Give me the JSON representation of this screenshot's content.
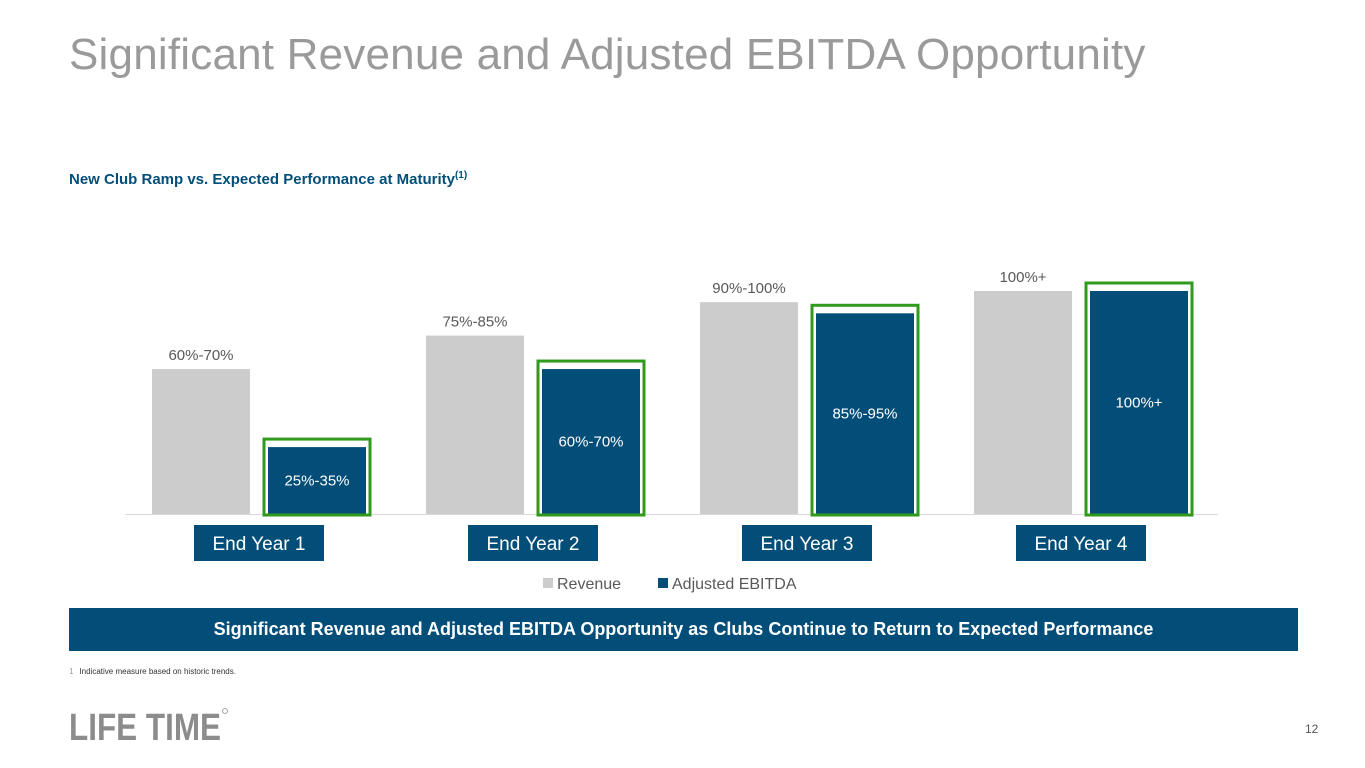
{
  "slide": {
    "title": "Significant Revenue and Adjusted EBITDA Opportunity",
    "subtitle": "New Club Ramp vs. Expected Performance at Maturity",
    "subtitle_footnote_ref": "(1)",
    "banner": "Significant Revenue and Adjusted EBITDA Opportunity as Clubs Continue to Return to Expected Performance",
    "footnote_number": "1",
    "footnote_text": "Indicative measure based on historic trends.",
    "logo_text": "LIFE TIME",
    "page_number": "12"
  },
  "colors": {
    "revenue": "#cccccc",
    "adjusted_ebitda": "#034e79",
    "highlight_border": "#2f9a1c",
    "banner": "#034e79",
    "title": "#9a9a9a",
    "subtitle": "#034e79"
  },
  "chart_data": {
    "type": "bar",
    "categories": [
      "End Year 1",
      "End Year 2",
      "End Year 3",
      "End Year 4"
    ],
    "series": [
      {
        "name": "Revenue",
        "values": [
          65,
          80,
          95,
          100
        ],
        "labels": [
          "60%-70%",
          "75%-85%",
          "90%-100%",
          "100%+"
        ]
      },
      {
        "name": "Adjusted EBITDA",
        "values": [
          30,
          65,
          90,
          100
        ],
        "labels": [
          "25%-35%",
          "60%-70%",
          "85%-95%",
          "100%+"
        ]
      }
    ],
    "ylim": [
      0,
      100
    ],
    "legend": "bottom",
    "highlighted_series": "Adjusted EBITDA"
  }
}
